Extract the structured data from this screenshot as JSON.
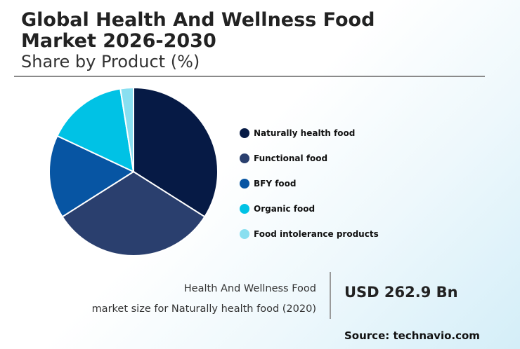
{
  "header": {
    "title_line1": "Global Health And Wellness Food",
    "title_line2": "Market 2026-2030",
    "subtitle": "Share by Product (%)"
  },
  "chart_data": {
    "type": "pie",
    "title": "Global Health And Wellness Food Market 2026-2030",
    "subtitle": "Share by Product (%)",
    "legend_position": "right",
    "slices": [
      {
        "label": "Naturally health food",
        "value": 34,
        "color": "#061a45"
      },
      {
        "label": "Functional food",
        "value": 32,
        "color": "#2a3f6e"
      },
      {
        "label": "BFY food",
        "value": 16,
        "color": "#0755a3"
      },
      {
        "label": "Organic food",
        "value": 15.5,
        "color": "#00c2e5"
      },
      {
        "label": "Food intolerance products",
        "value": 2.5,
        "color": "#89dff0"
      }
    ]
  },
  "footer": {
    "market_label_line1": "Health And Wellness Food",
    "market_label_line2": "market size for Naturally health food (2020)",
    "market_value": "USD 262.9 Bn",
    "source": "Source: technavio.com"
  }
}
